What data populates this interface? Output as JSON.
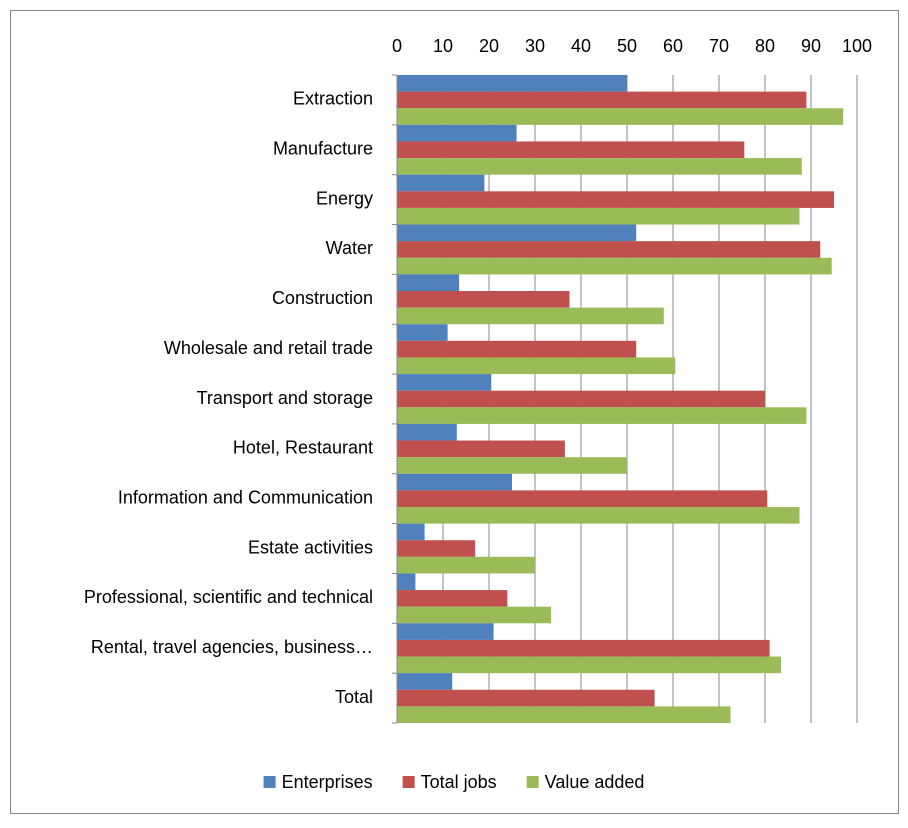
{
  "chart_data": {
    "type": "bar",
    "orientation": "horizontal",
    "categories": [
      "Extraction",
      "Manufacture",
      "Energy",
      "Water",
      "Construction",
      "Wholesale and retail trade",
      "Transport and storage",
      "Hotel, Restaurant",
      "Information and Communication",
      "Estate activities",
      "Professional, scientific and technical",
      "Rental, travel agencies, business…",
      "Total"
    ],
    "series": [
      {
        "name": "Enterprises",
        "color": "#4f81bd",
        "values": [
          50,
          26,
          19,
          52,
          13.5,
          11,
          20.5,
          13,
          25,
          6,
          4,
          21,
          12
        ]
      },
      {
        "name": "Total jobs",
        "color": "#c0504d",
        "values": [
          89,
          75.5,
          95,
          92,
          37.5,
          52,
          80,
          36.5,
          80.5,
          17,
          24,
          81,
          56
        ]
      },
      {
        "name": "Value added",
        "color": "#9bbb59",
        "values": [
          97,
          88,
          87.5,
          94.5,
          58,
          60.5,
          89,
          50,
          87.5,
          30,
          33.5,
          83.5,
          72.5
        ]
      }
    ],
    "xlim": [
      0,
      100
    ],
    "xticks": [
      0,
      10,
      20,
      30,
      40,
      50,
      60,
      70,
      80,
      90,
      100
    ],
    "grid": true,
    "legend": "bottom"
  }
}
